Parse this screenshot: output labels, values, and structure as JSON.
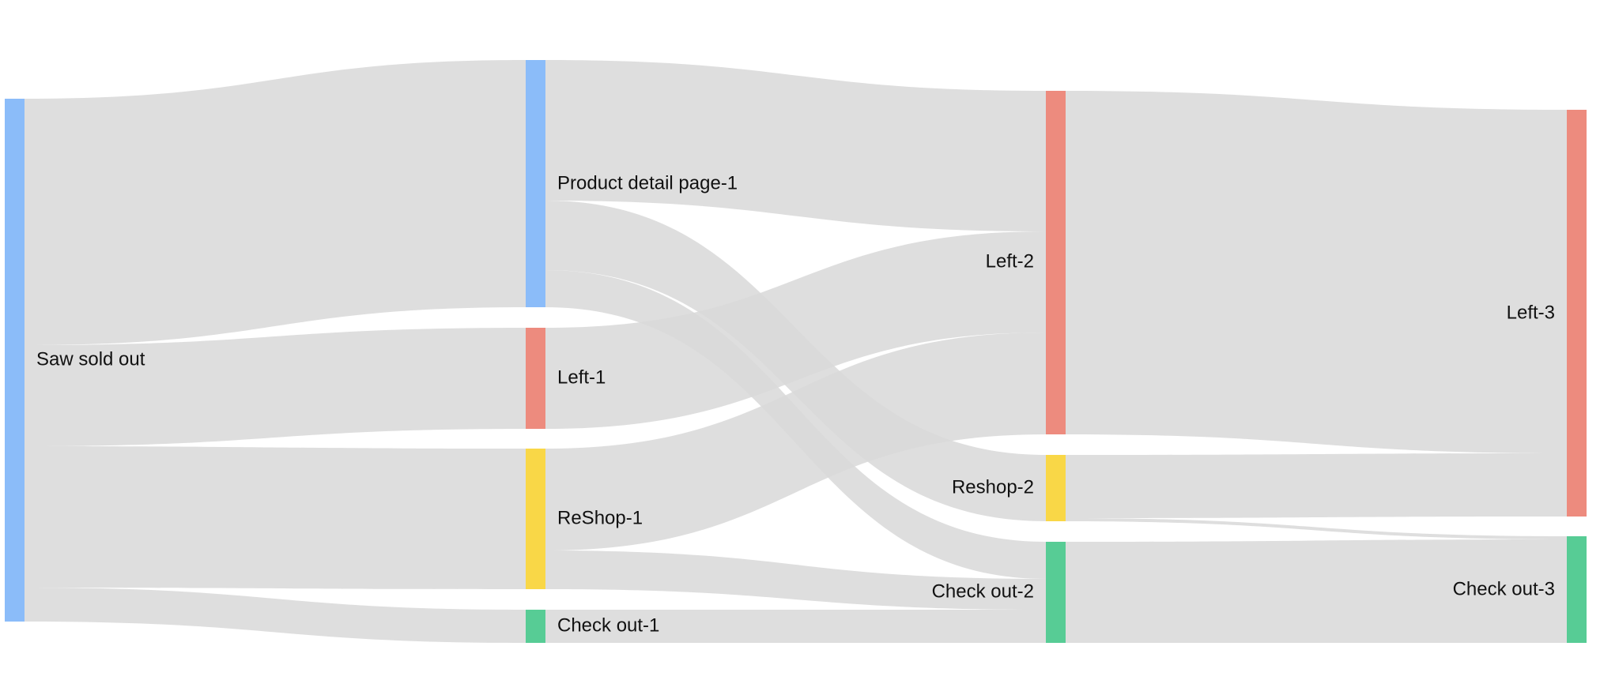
{
  "diagram": {
    "type": "sankey",
    "link_color": "#dadada",
    "nodes": [
      {
        "id": "saw_sold_out",
        "label": "Saw sold out",
        "color": "#8bbcf9"
      },
      {
        "id": "pdp1",
        "label": "Product detail page-1",
        "color": "#8bbcf9"
      },
      {
        "id": "left1",
        "label": "Left-1",
        "color": "#ed8b7e"
      },
      {
        "id": "reshop1",
        "label": "ReShop-1",
        "color": "#f9d747"
      },
      {
        "id": "checkout1",
        "label": "Check out-1",
        "color": "#57cc95"
      },
      {
        "id": "left2",
        "label": "Left-2",
        "color": "#ed8b7e"
      },
      {
        "id": "reshop2",
        "label": "Reshop-2",
        "color": "#f9d747"
      },
      {
        "id": "checkout2",
        "label": "Check out-2",
        "color": "#57cc95"
      },
      {
        "id": "left3",
        "label": "Left-3",
        "color": "#ed8b7e"
      },
      {
        "id": "checkout3",
        "label": "Check out-3",
        "color": "#57cc95"
      }
    ],
    "links": [
      {
        "source": "saw_sold_out",
        "target": "pdp1"
      },
      {
        "source": "saw_sold_out",
        "target": "left1"
      },
      {
        "source": "saw_sold_out",
        "target": "reshop1"
      },
      {
        "source": "saw_sold_out",
        "target": "checkout1"
      },
      {
        "source": "pdp1",
        "target": "left2"
      },
      {
        "source": "pdp1",
        "target": "reshop2"
      },
      {
        "source": "pdp1",
        "target": "checkout2"
      },
      {
        "source": "left1",
        "target": "left2"
      },
      {
        "source": "reshop1",
        "target": "left2"
      },
      {
        "source": "reshop1",
        "target": "checkout2"
      },
      {
        "source": "checkout1",
        "target": "checkout2"
      },
      {
        "source": "left2",
        "target": "left3"
      },
      {
        "source": "reshop2",
        "target": "left3"
      },
      {
        "source": "reshop2",
        "target": "checkout3"
      },
      {
        "source": "checkout2",
        "target": "checkout3"
      }
    ]
  }
}
